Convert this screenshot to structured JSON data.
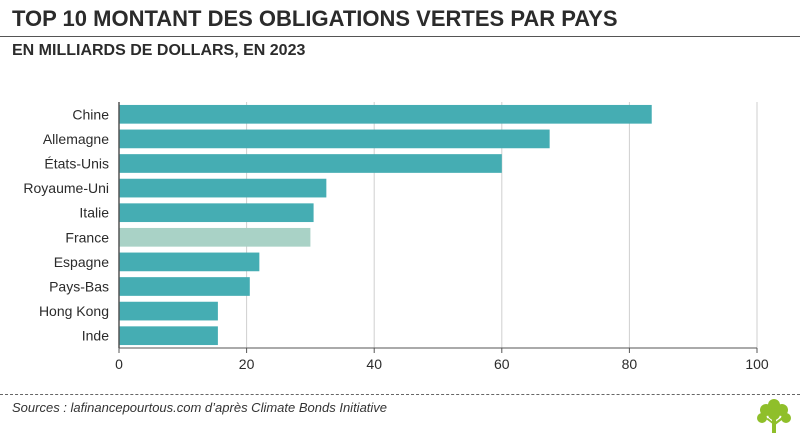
{
  "header": {
    "title": "TOP 10 MONTANT DES OBLIGATIONS VERTES PAR PAYS",
    "subtitle": "EN MILLIARDS DE DOLLARS, EN 2023"
  },
  "footer": {
    "source": "Sources : lafinancepourtous.com d’après Climate Bonds Initiative",
    "logo_icon": "tree-logo-icon"
  },
  "colors": {
    "bar": "#45adb3",
    "highlight": "#a9d2c6",
    "grid": "#cfcfcf",
    "axis": "#555555",
    "text": "#2b2b2b",
    "logo": "#8fbf2a"
  },
  "chart_data": {
    "type": "bar",
    "orientation": "horizontal",
    "categories": [
      "Chine",
      "Allemagne",
      "États-Unis",
      "Royaume-Uni",
      "Italie",
      "France",
      "Espagne",
      "Pays-Bas",
      "Hong Kong",
      "Inde"
    ],
    "values": [
      83.5,
      67.5,
      60,
      32.5,
      30.5,
      30,
      22,
      20.5,
      15.5,
      15.5
    ],
    "highlight_category": "France",
    "xlim": [
      0,
      100
    ],
    "xticks": [
      0,
      20,
      40,
      60,
      80,
      100
    ],
    "grid": true,
    "title": "TOP 10 MONTANT DES OBLIGATIONS VERTES PAR PAYS",
    "subtitle": "EN MILLIARDS DE DOLLARS, EN 2023",
    "xlabel": "",
    "ylabel": ""
  }
}
